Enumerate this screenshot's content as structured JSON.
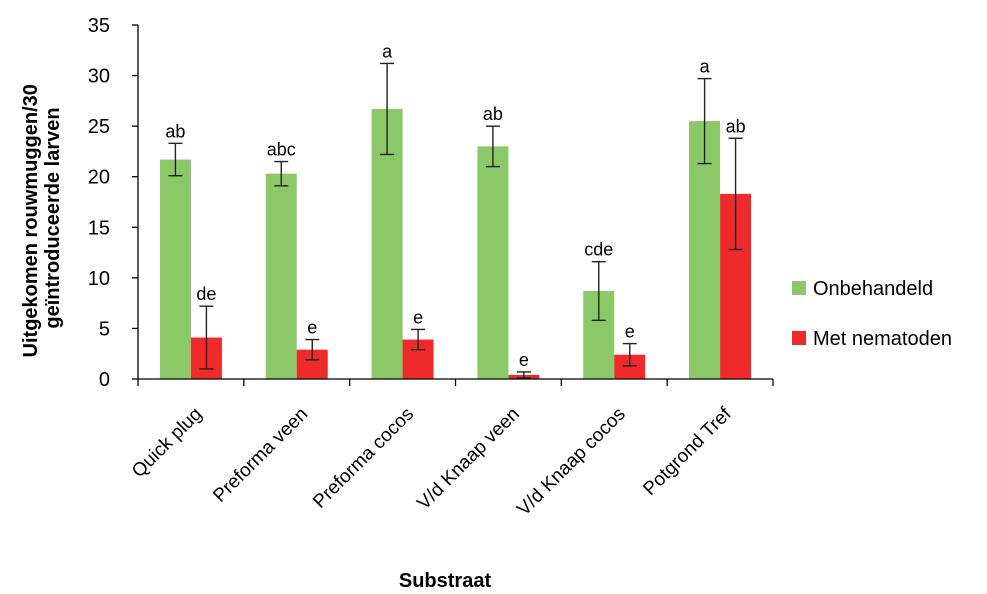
{
  "chart_data": {
    "type": "bar",
    "categories": [
      "Quick plug",
      "Preforma veen",
      "Preforma cocos",
      "V/d Knaap veen",
      "V/d Knaap cocos",
      "Potgrond Tref"
    ],
    "series": [
      {
        "name": "Onbehandeld",
        "color": "#8bc867",
        "values": [
          21.7,
          20.3,
          26.7,
          23.0,
          8.7,
          25.5
        ],
        "errors": [
          1.6,
          1.2,
          4.5,
          2.0,
          2.9,
          4.2
        ],
        "letters": [
          "ab",
          "abc",
          "a",
          "ab",
          "cde",
          "a"
        ]
      },
      {
        "name": "Met nematoden",
        "color": "#ee2a2a",
        "values": [
          4.1,
          2.9,
          3.9,
          0.4,
          2.4,
          18.3
        ],
        "errors": [
          3.1,
          1.0,
          1.0,
          0.3,
          1.1,
          5.5
        ],
        "letters": [
          "de",
          "e",
          "e",
          "e",
          "e",
          "ab"
        ]
      }
    ],
    "yticks": [
      0,
      5,
      10,
      15,
      20,
      25,
      30,
      35
    ],
    "ylim": [
      0,
      35
    ],
    "xlabel": "Substraat",
    "ylabel_line1": "Uitgekomen rouwmuggen/30",
    "ylabel_line2": "geïntroduceerde larven",
    "grid": false,
    "legend_position": "right"
  }
}
